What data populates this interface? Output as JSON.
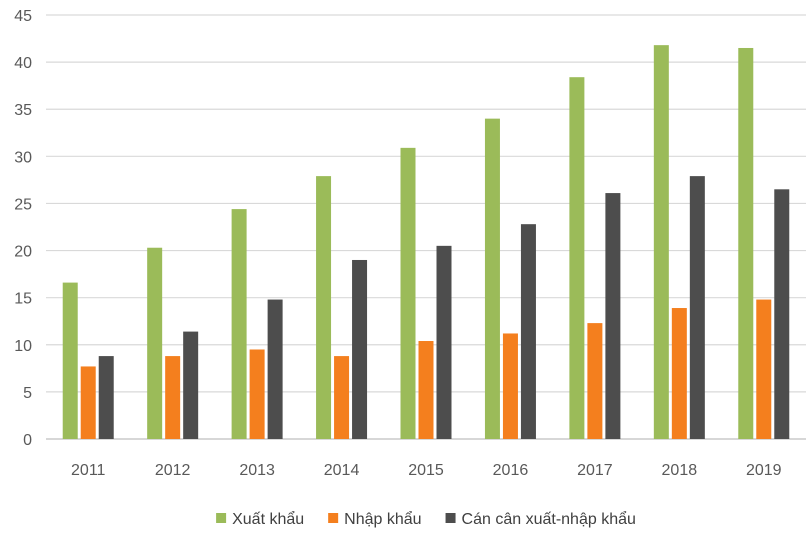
{
  "chart_data": {
    "type": "bar",
    "title": "",
    "xlabel": "",
    "ylabel": "",
    "ylim": [
      0,
      45
    ],
    "yticks": [
      0,
      5,
      10,
      15,
      20,
      25,
      30,
      35,
      40,
      45
    ],
    "grid": true,
    "legend_position": "bottom",
    "categories": [
      "2011",
      "2012",
      "2013",
      "2014",
      "2015",
      "2016",
      "2017",
      "2018",
      "2019"
    ],
    "series": [
      {
        "name": "Xuất khẩu",
        "color": "#9bbb59",
        "values": [
          16.6,
          20.3,
          24.4,
          27.9,
          30.9,
          34.0,
          38.4,
          41.8,
          41.5
        ]
      },
      {
        "name": "Nhập khẩu",
        "color": "#f47f1e",
        "values": [
          7.7,
          8.8,
          9.5,
          8.8,
          10.4,
          11.2,
          12.3,
          13.9,
          14.8
        ]
      },
      {
        "name": "Cán cân xuất-nhập khẩu",
        "color": "#4d4d4d",
        "values": [
          8.8,
          11.4,
          14.8,
          19.0,
          20.5,
          22.8,
          26.1,
          27.9,
          26.5
        ]
      }
    ]
  }
}
